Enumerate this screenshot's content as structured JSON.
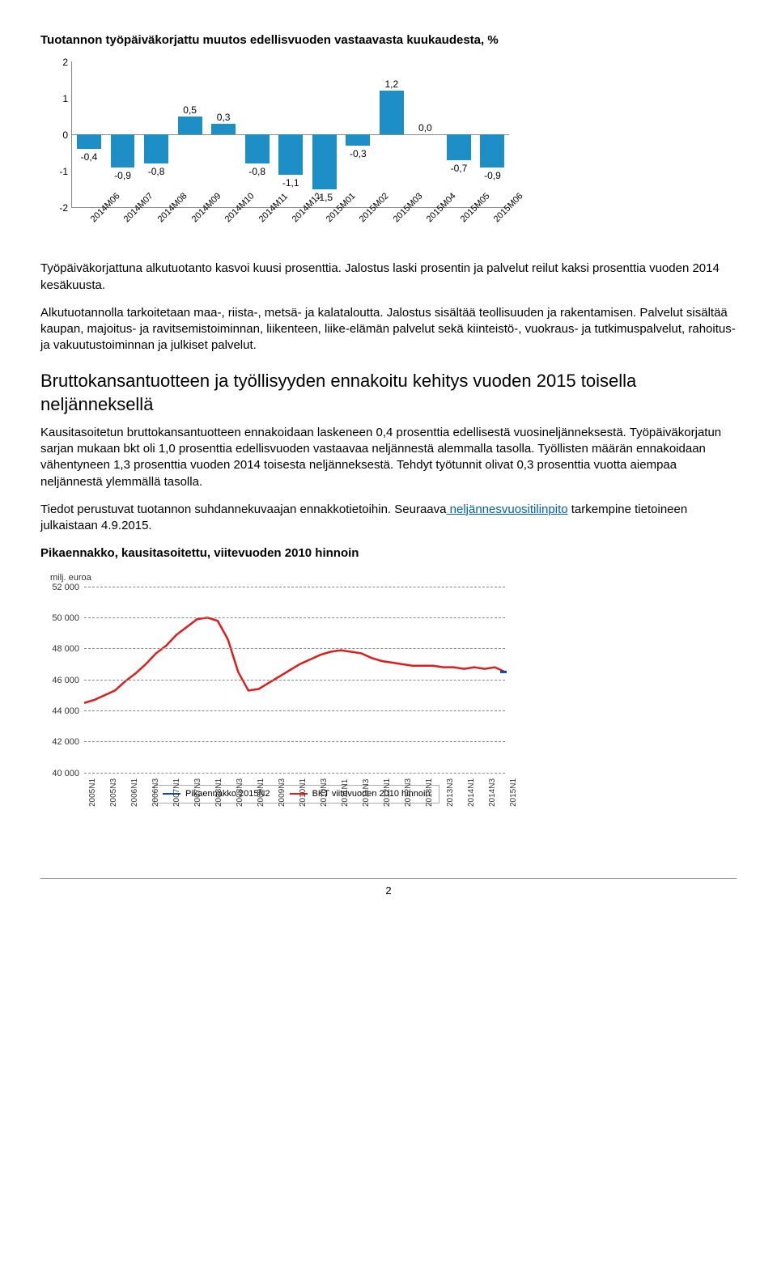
{
  "chart1": {
    "title": "Tuotannon työpäiväkorjattu muutos edellisvuoden vastaavasta kuukaudesta, %",
    "categories": [
      "2014M06",
      "2014M07",
      "2014M08",
      "2014M09",
      "2014M10",
      "2014M11",
      "2014M12",
      "2015M01",
      "2015M02",
      "2015M03",
      "2015M04",
      "2015M05",
      "2015M06"
    ],
    "values": [
      -0.4,
      -0.9,
      -0.8,
      0.5,
      0.3,
      -0.8,
      -1.1,
      -1.5,
      -0.3,
      1.2,
      0.0,
      -0.7,
      -0.9
    ],
    "labels": [
      "-0,4",
      "-0,9",
      "-0,8",
      "0,5",
      "0,3",
      "-0,8",
      "-1,1",
      "-1,5",
      "-0,3",
      "1,2",
      "0,0",
      "-0,7",
      "-0,9"
    ],
    "bar_color": "#1e8fc6",
    "ylim": [
      -2,
      2
    ],
    "yticks": [
      -2,
      -1,
      0,
      1,
      2
    ]
  },
  "para1": "Työpäiväkorjattuna alkutuotanto kasvoi kuusi prosenttia. Jalostus laski prosentin ja palvelut reilut kaksi prosenttia vuoden 2014 kesäkuusta.",
  "para2": "Alkutuotannolla tarkoitetaan maa-, riista-, metsä- ja kalataloutta. Jalostus sisältää teollisuuden ja rakentamisen. Palvelut sisältää kaupan, majoitus- ja ravitsemistoiminnan, liikenteen, liike-elämän palvelut sekä kiinteistö-, vuokraus- ja tutkimuspalvelut, rahoitus- ja vakuutustoiminnan ja julkiset palvelut.",
  "h2": "Bruttokansantuotteen ja työllisyyden ennakoitu kehitys vuoden 2015 toisella neljänneksellä",
  "para3": "Kausitasoitetun bruttokansantuotteen ennakoidaan laskeneen 0,4 prosenttia edellisestä vuosineljänneksestä. Työpäiväkorjatun sarjan mukaan bkt oli 1,0 prosenttia edellisvuoden vastaavaa neljännestä alemmalla tasolla. Työllisten määrän ennakoidaan vähentyneen 1,3 prosenttia vuoden 2014 toisesta neljänneksestä. Tehdyt työtunnit olivat 0,3 prosenttia vuotta aiempaa neljännestä ylemmällä tasolla.",
  "para4a": "Tiedot perustuvat tuotannon suhdannekuvaajan ennakkotietoihin. Seuraava",
  "para4link": " neljännesvuositilinpito",
  "para4b": " tarkempine tietoineen julkaistaan 4.9.2015.",
  "chart2": {
    "title": "Pikaennakko, kausitasoitettu, viitevuoden 2010 hinnoin",
    "ylabel_unit": "milj. euroa",
    "ylim": [
      40000,
      52000
    ],
    "yticks": [
      40000,
      42000,
      44000,
      46000,
      48000,
      50000,
      52000
    ],
    "ytick_labels": [
      "40 000",
      "42 000",
      "44 000",
      "46 000",
      "48 000",
      "50 000",
      "52 000"
    ],
    "xlabels": [
      "2005N1",
      "2005N3",
      "2006N1",
      "2006N3",
      "2007N1",
      "2007N3",
      "2008N1",
      "2008N3",
      "2009N1",
      "2009N3",
      "2010N1",
      "2010N3",
      "2011N1",
      "2011N3",
      "2012N1",
      "2012N3",
      "2013N1",
      "2013N3",
      "2014N1",
      "2014N3",
      "2015N1"
    ],
    "red_series": [
      44500,
      44700,
      45000,
      45300,
      45900,
      46400,
      47000,
      47700,
      48200,
      48900,
      49400,
      49900,
      50000,
      49800,
      48600,
      46500,
      45300,
      45400,
      45800,
      46200,
      46600,
      47000,
      47300,
      47600,
      47800,
      47900,
      47800,
      47700,
      47400,
      47200,
      47100,
      47000,
      46900,
      46900,
      46900,
      46800,
      46800,
      46700,
      46800,
      46700,
      46800,
      46500
    ],
    "red_color": "#e01b1b",
    "blue_color": "#0a4aa8",
    "blue_point": {
      "index": 41,
      "value": 46500
    },
    "legend": {
      "blue": "Pikaennakko 2015N2",
      "red": "BKT viitevuoden 2010 hinnoin"
    }
  },
  "page_number": "2"
}
